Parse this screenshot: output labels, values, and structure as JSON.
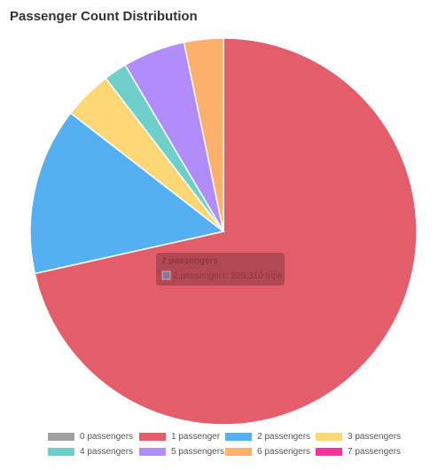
{
  "chart_data": {
    "type": "pie",
    "title": "Passenger Count Distribution",
    "categories": [
      "0 passengers",
      "1 passenger",
      "2 passengers",
      "3 passengers",
      "4 passengers",
      "5 passengers",
      "6 passengers",
      "7 passengers"
    ],
    "values": [
      0,
      1069720,
      209310,
      61000,
      29000,
      78000,
      49000,
      0
    ],
    "colors": [
      "#a0a0a0",
      "#e35d6a",
      "#54b0f1",
      "#fdd776",
      "#6fcfcb",
      "#b18cfb",
      "#fdb06b",
      "#f8329c"
    ],
    "tooltip": {
      "title": "2 passengers",
      "body": "2 passengers: 209,310 trips",
      "color": "#54b0f1"
    },
    "legend": "bottom"
  }
}
